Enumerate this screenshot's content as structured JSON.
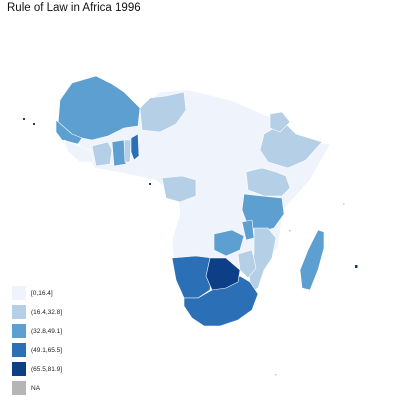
{
  "title": "Rule of Law in Africa 1996",
  "colors": {
    "c1": "#eef3fc",
    "c2": "#b4cfe6",
    "c3": "#5d9fd0",
    "c4": "#2b6fb7",
    "c5": "#0c3f86",
    "na": "#b5b5b5"
  },
  "legend": [
    {
      "label": "[0,16.4]",
      "color": "#eef3fc"
    },
    {
      "label": "(16.4,32.8]",
      "color": "#b4cfe6"
    },
    {
      "label": "(32.8,49.1]",
      "color": "#5d9fd0"
    },
    {
      "label": "(49.1,65.5]",
      "color": "#2b6fb7"
    },
    {
      "label": "(65.5,81.9]",
      "color": "#0c3f86"
    },
    {
      "label": "NA",
      "color": "#b5b5b5"
    }
  ]
}
